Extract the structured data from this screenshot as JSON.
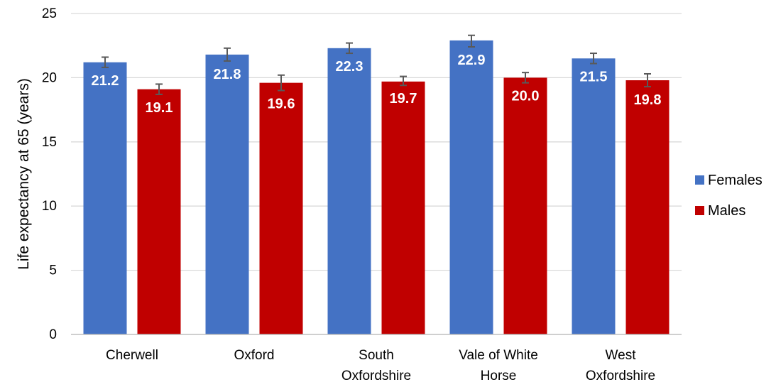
{
  "chart_data": {
    "type": "bar",
    "title": "",
    "xlabel": "",
    "ylabel": "Life expectancy at 65 (years)",
    "ylim": [
      0,
      25
    ],
    "yticks": [
      0,
      5,
      10,
      15,
      20,
      25
    ],
    "grid": true,
    "legend_position": "right",
    "categories": [
      [
        "Cherwell"
      ],
      [
        "Oxford"
      ],
      [
        "South",
        "Oxfordshire"
      ],
      [
        "Vale of White",
        "Horse"
      ],
      [
        "West",
        "Oxfordshire"
      ]
    ],
    "series": [
      {
        "name": "Females",
        "color": "#4472C4",
        "values": [
          21.2,
          21.8,
          22.3,
          22.9,
          21.5
        ],
        "labels": [
          "21.2",
          "21.8",
          "22.3",
          "22.9",
          "21.5"
        ],
        "error_low": [
          20.8,
          21.3,
          21.9,
          22.4,
          21.1
        ],
        "error_high": [
          21.6,
          22.3,
          22.7,
          23.3,
          21.9
        ]
      },
      {
        "name": "Males",
        "color": "#C00000",
        "values": [
          19.1,
          19.6,
          19.7,
          20.0,
          19.8
        ],
        "labels": [
          "19.1",
          "19.6",
          "19.7",
          "20.0",
          "19.8"
        ],
        "error_low": [
          18.7,
          19.0,
          19.4,
          19.6,
          19.3
        ],
        "error_high": [
          19.5,
          20.2,
          20.1,
          20.4,
          20.3
        ]
      }
    ]
  }
}
